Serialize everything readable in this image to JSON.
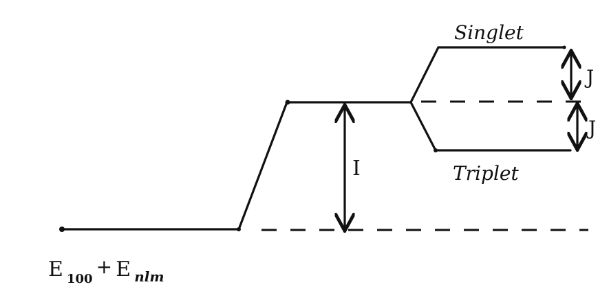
{
  "labels": {
    "singlet": "Singlet",
    "triplet": "Triplet",
    "exchange_upper": "J",
    "exchange_lower": "J",
    "ionization": "I",
    "ground_main": "E",
    "ground_sub1": "100",
    "ground_plus": "+",
    "ground_main2": "E",
    "ground_sub2": "nlm"
  },
  "colors": {
    "ink": "#111111",
    "background": "#ffffff"
  }
}
